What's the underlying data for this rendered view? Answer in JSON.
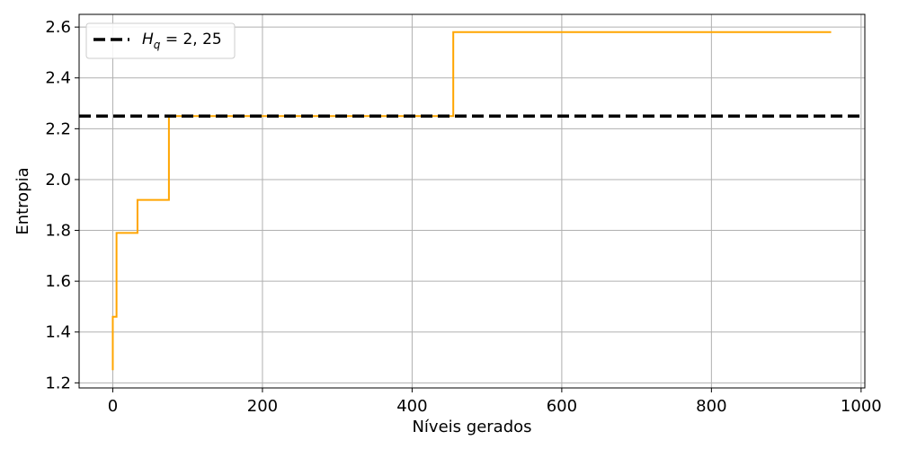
{
  "chart_data": {
    "type": "line",
    "xlabel": "Níveis gerados",
    "ylabel": "Entropia",
    "xlim": [
      -45,
      1005
    ],
    "ylim": [
      1.18,
      2.65
    ],
    "xticks": [
      0,
      200,
      400,
      600,
      800,
      1000
    ],
    "yticks": [
      1.2,
      1.4,
      1.6,
      1.8,
      2.0,
      2.2,
      2.4,
      2.6
    ],
    "xtick_labels": [
      "0",
      "200",
      "400",
      "600",
      "800",
      "1000"
    ],
    "ytick_labels": [
      "1.2",
      "1.4",
      "1.6",
      "1.8",
      "2.0",
      "2.2",
      "2.4",
      "2.6"
    ],
    "grid": true,
    "legend_position": "top-left",
    "series": [
      {
        "type": "step",
        "color": "#FFA500",
        "x": [
          0,
          0,
          2,
          2,
          5,
          5,
          33,
          33,
          75,
          75,
          455,
          455,
          960
        ],
        "y": [
          1.25,
          1.46,
          1.46,
          1.46,
          1.46,
          1.79,
          1.79,
          1.92,
          1.92,
          2.25,
          2.25,
          2.58,
          2.58
        ]
      }
    ],
    "reference_lines": [
      {
        "orientation": "horizontal",
        "y": 2.25,
        "color": "#000000",
        "style": "dashed",
        "legend_label_main": "H",
        "legend_label_sub": "q",
        "legend_label_rest": " = 2, 25"
      }
    ]
  }
}
